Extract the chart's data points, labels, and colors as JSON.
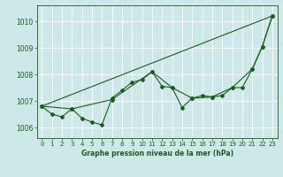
{
  "title": "Graphe pression niveau de la mer (hPa)",
  "bg_color": "#cce8e8",
  "grid_color": "#ffffff",
  "line_color": "#1a5c1a",
  "xlim": [
    -0.5,
    23.5
  ],
  "ylim": [
    1005.6,
    1010.6
  ],
  "yticks": [
    1006,
    1007,
    1008,
    1009,
    1010
  ],
  "xticks": [
    0,
    1,
    2,
    3,
    4,
    5,
    6,
    7,
    8,
    9,
    10,
    11,
    12,
    13,
    14,
    15,
    16,
    17,
    18,
    19,
    20,
    21,
    22,
    23
  ],
  "series_straight": [
    [
      0,
      1006.8
    ],
    [
      23,
      1010.2
    ]
  ],
  "series_main": [
    [
      0,
      1006.8
    ],
    [
      1,
      1006.5
    ],
    [
      2,
      1006.4
    ],
    [
      3,
      1006.7
    ],
    [
      4,
      1006.35
    ],
    [
      5,
      1006.2
    ],
    [
      6,
      1006.1
    ],
    [
      7,
      1007.1
    ],
    [
      8,
      1007.4
    ],
    [
      9,
      1007.7
    ],
    [
      10,
      1007.8
    ],
    [
      11,
      1008.1
    ],
    [
      12,
      1007.55
    ],
    [
      13,
      1007.5
    ],
    [
      14,
      1006.75
    ],
    [
      15,
      1007.1
    ],
    [
      16,
      1007.2
    ],
    [
      17,
      1007.15
    ],
    [
      18,
      1007.2
    ],
    [
      19,
      1007.5
    ],
    [
      20,
      1007.5
    ],
    [
      21,
      1008.2
    ],
    [
      22,
      1009.05
    ],
    [
      23,
      1010.2
    ]
  ],
  "series_sparse": [
    [
      0,
      1006.8
    ],
    [
      3,
      1006.7
    ],
    [
      7,
      1007.05
    ],
    [
      11,
      1008.1
    ],
    [
      13,
      1007.5
    ],
    [
      15,
      1007.1
    ],
    [
      17,
      1007.15
    ],
    [
      19,
      1007.5
    ],
    [
      21,
      1008.2
    ],
    [
      22,
      1009.05
    ],
    [
      23,
      1010.2
    ]
  ],
  "ylabel_fontsize": 5.5,
  "xlabel_fontsize": 5.5,
  "tick_fontsize": 5.0
}
